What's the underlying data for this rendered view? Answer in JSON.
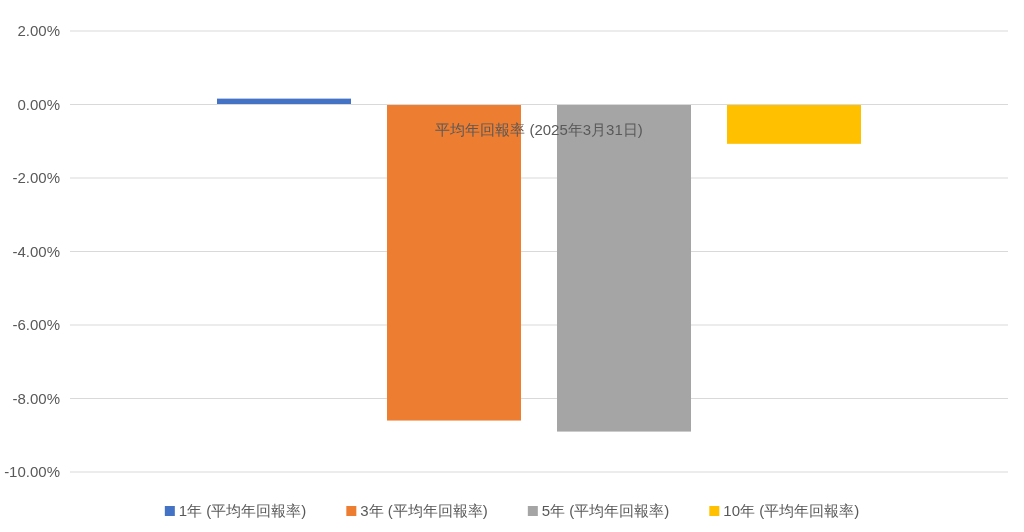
{
  "chart_data": {
    "type": "bar",
    "categories": [
      "平均年回報率 (2025年3月31日)"
    ],
    "series": [
      {
        "name": "1年 (平均年回報率)",
        "color": "#4472c4",
        "values": [
          0.16
        ]
      },
      {
        "name": "3年 (平均年回報率)",
        "color": "#ed7d31",
        "values": [
          -8.6
        ]
      },
      {
        "name": "5年 (平均年回報率)",
        "color": "#a5a5a5",
        "values": [
          -8.9
        ]
      },
      {
        "name": "10年 (平均年回報率)",
        "color": "#ffc000",
        "values": [
          -1.07
        ]
      }
    ],
    "ylim": [
      -10,
      2
    ],
    "yticks": [
      {
        "value": 2,
        "label": "2.00%"
      },
      {
        "value": 0,
        "label": "0.00%"
      },
      {
        "value": -2,
        "label": "-2.00%"
      },
      {
        "value": -4,
        "label": "-4.00%"
      },
      {
        "value": -6,
        "label": "-6.00%"
      },
      {
        "value": -8,
        "label": "-8.00%"
      },
      {
        "value": -10,
        "label": "-10.00%"
      }
    ],
    "grid": "y",
    "legend": "bottom"
  }
}
